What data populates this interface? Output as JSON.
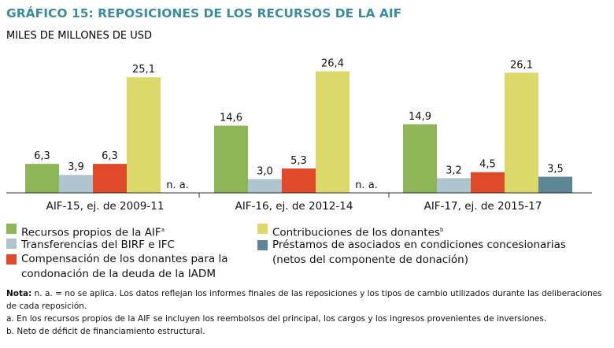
{
  "chart_data": {
    "type": "bar",
    "title": "GRÁFICO 15: REPOSICIONES DE LOS RECURSOS DE LA AIF",
    "ylabel": "MILES DE MILLONES DE USD",
    "categories": [
      "AIF-15, ej. de 2009-11",
      "AIF-16, ej. de 2012-14",
      "AIF-17, ej. de 2015-17"
    ],
    "series": [
      {
        "name": "Recursos propios de la AIF",
        "sup": "a",
        "color": "#8db757",
        "values": [
          6.3,
          14.6,
          14.9
        ],
        "labels": [
          "6,3",
          "14,6",
          "14,9"
        ]
      },
      {
        "name": "Transferencias del BIRF e IFC",
        "sup": "",
        "color": "#adc5cf",
        "values": [
          3.9,
          3.0,
          3.2
        ],
        "labels": [
          "3,9",
          "3,0",
          "3,2"
        ]
      },
      {
        "name": "Compensación de los donantes para la condonación de la deuda de la IADM",
        "sup": "",
        "color": "#e0492a",
        "values": [
          6.3,
          5.3,
          4.5
        ],
        "labels": [
          "6,3",
          "5,3",
          "4,5"
        ]
      },
      {
        "name": "Contribuciones de los donantes",
        "sup": "b",
        "color": "#dcd96b",
        "values": [
          25.1,
          26.4,
          26.1
        ],
        "labels": [
          "25,1",
          "26,4",
          "26,1"
        ]
      },
      {
        "name": "Préstamos de asociados en condiciones concesionarias (netos del componente de donación)",
        "sup": "",
        "color": "#5e8696",
        "values": [
          null,
          null,
          3.5
        ],
        "labels": [
          "n. a.",
          "n. a.",
          "3,5"
        ]
      }
    ],
    "ylim": [
      0,
      28
    ],
    "grid": false,
    "legend": "bottom"
  },
  "notes": {
    "nota_label": "Nota:",
    "nota": " n. a. = no se aplica. Los datos reflejan los informes finales de las reposiciones y los tipos de cambio utilizados durante las deliberaciones de cada reposición.",
    "a": "a. En los recursos propios de la AIF se incluyen los reembolsos del principal, los cargos y los ingresos provenientes de inversiones.",
    "b": "b. Neto de déficit de financiamiento estructural."
  }
}
